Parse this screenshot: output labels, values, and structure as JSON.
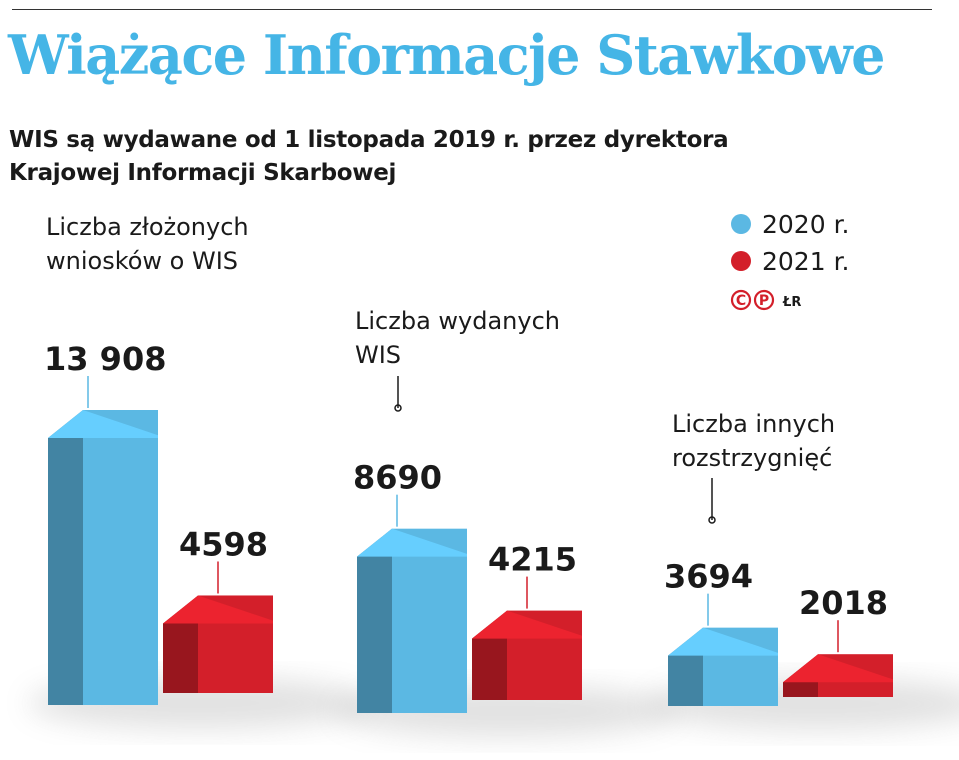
{
  "title": "Wiążące Informacje Stawkowe",
  "subtitle": [
    "WIS są wydawane od 1 listopada 2019 r. przez dyrektora",
    "Krajowej Informacji Skarbowej"
  ],
  "legend": {
    "items": [
      {
        "label": "2020 r.",
        "color": "#5bb8e3"
      },
      {
        "label": "2021 r.",
        "color": "#d31f2a"
      }
    ],
    "credit": "ŁR",
    "copyright_marks": [
      "C",
      "P"
    ]
  },
  "chart_data": {
    "type": "bar",
    "categories": [
      [
        "Liczba złożonych",
        "wniosków o WIS"
      ],
      [
        "Liczba wydanych",
        "WIS"
      ],
      [
        "Liczba innych",
        "rozstrzygnięć"
      ]
    ],
    "series": [
      {
        "name": "2020 r.",
        "values": [
          13908,
          8690,
          3694
        ],
        "labels": [
          "13 908",
          "8690",
          "3694"
        ],
        "color": "#5bb8e3"
      },
      {
        "name": "2021 r.",
        "values": [
          4598,
          4215,
          2018
        ],
        "labels": [
          "4598",
          "4215",
          "2018"
        ],
        "color": "#d31f2a"
      }
    ],
    "ylim": [
      0,
      13908
    ]
  }
}
